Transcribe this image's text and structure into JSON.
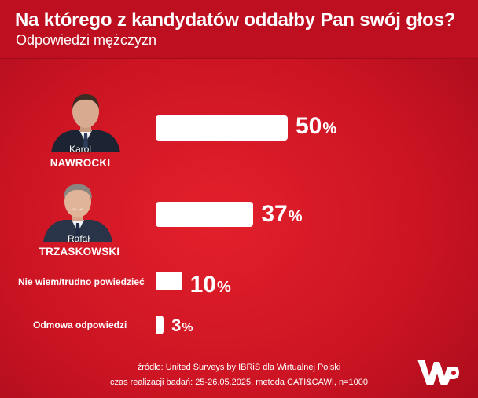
{
  "header": {
    "title": "Na którego z kandydatów oddałby Pan swój głos?",
    "subtitle": "Odpowiedzi mężczyzn"
  },
  "chart_data": {
    "type": "bar",
    "orientation": "horizontal",
    "title": "Na którego z kandydatów oddałby Pan swój głos?",
    "subtitle": "Odpowiedzi mężczyzn",
    "categories": [
      "Karol NAWROCKI",
      "Rafał TRZASKOWSKI",
      "Nie wiem/trudno powiedzieć",
      "Odmowa odpowiedzi"
    ],
    "values": [
      50,
      37,
      10,
      3
    ],
    "unit": "%",
    "bar_color": "#ffffff",
    "background_color": "#d01a27",
    "candidates": [
      {
        "first_name": "Karol",
        "last_name": "NAWROCKI",
        "value": 50
      },
      {
        "first_name": "Rafał",
        "last_name": "TRZASKOWSKI",
        "value": 37
      }
    ],
    "other_answers": [
      {
        "label": "Nie wiem/trudno powiedzieć",
        "value": 10
      },
      {
        "label": "Odmowa odpowiedzi",
        "value": 3
      }
    ]
  },
  "footer": {
    "source": "źródło: United Surveys by IBRiS dla Wirtualnej Polski",
    "method": "czas realizacji badań: 25-26.05.2025, metoda CATI&CAWI, n=1000"
  },
  "logo": {
    "name": "wp-logo"
  }
}
